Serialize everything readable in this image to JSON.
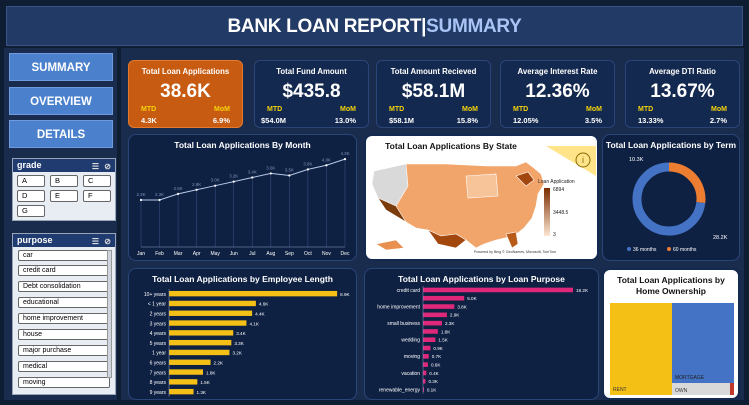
{
  "header": {
    "title_main": "BANK LOAN REPORT|",
    "title_sub": "SUMMARY"
  },
  "nav": {
    "summary": "SUMMARY",
    "overview": "OVERVIEW",
    "details": "DETAILS"
  },
  "grade_slicer": {
    "title": "grade",
    "options": [
      "A",
      "B",
      "C",
      "D",
      "E",
      "F",
      "G"
    ]
  },
  "purpose_slicer": {
    "title": "purpose",
    "options": [
      "car",
      "credit card",
      "Debt consolidation",
      "educational",
      "home improvement",
      "house",
      "major purchase",
      "medical",
      "moving"
    ]
  },
  "kpis": [
    {
      "label": "Total Loan Applications",
      "value": "38.6K",
      "mtd_label": "MTD",
      "mtd": "4.3K",
      "mom_label": "MoM",
      "mom": "6.9%"
    },
    {
      "label": "Total Fund Amount",
      "value": "$435.8",
      "mtd_label": "MTD",
      "mtd": "$54.0M",
      "mom_label": "MoM",
      "mom": "13.0%"
    },
    {
      "label": "Total Amount Recieved",
      "value": "$58.1M",
      "mtd_label": "MTD",
      "mtd": "$58.1M",
      "mom_label": "MoM",
      "mom": "15.8%"
    },
    {
      "label": "Average Interest Rate",
      "value": "12.36%",
      "mtd_label": "MTD",
      "mtd": "12.05%",
      "mom_label": "MoM",
      "mom": "3.5%"
    },
    {
      "label": "Average DTI Ratio",
      "value": "13.67%",
      "mtd_label": "MTD",
      "mtd": "13.33%",
      "mom_label": "MoM",
      "mom": "2.7%"
    }
  ],
  "colors": {
    "accent_orange": "#c85b12",
    "bar_yellow": "#f5c016",
    "bar_pink": "#e0287a",
    "donut_blue": "#4472c4",
    "donut_orange": "#ed7d31",
    "line": "#4472c4"
  },
  "chart_data": [
    {
      "type": "line",
      "title": "Total Loan Applications By Month",
      "categories": [
        "Jan",
        "Feb",
        "Mar",
        "Apr",
        "May",
        "Jun",
        "Jul",
        "Aug",
        "Sep",
        "Oct",
        "Nov",
        "Dec"
      ],
      "values": [
        2.3,
        2.3,
        2.6,
        2.8,
        3.0,
        3.2,
        3.4,
        3.6,
        3.5,
        3.8,
        4.0,
        4.3
      ],
      "labels": [
        "2.3K",
        "2.3K",
        "2.6K",
        "2.8K",
        "3.0K",
        "3.2K",
        "3.4K",
        "3.6K",
        "3.5K",
        "3.8K",
        "4.0K",
        "4.3K"
      ],
      "ylim": [
        0,
        4.6
      ]
    },
    {
      "type": "other",
      "title": "Total Loan Applications By State",
      "legend_title": "Loan Application",
      "legend_values": [
        "6894",
        "3448.5",
        "3"
      ],
      "credit": "Powered by Bing © GeoNames, Microsoft, TomTom"
    },
    {
      "type": "pie",
      "title": "Total Loan Applications by Term",
      "slices": [
        {
          "name": "36 months",
          "value": 28.2,
          "label": "28.2K"
        },
        {
          "name": "60 months",
          "value": 10.3,
          "label": "10.3K"
        }
      ]
    },
    {
      "type": "bar",
      "title": "Total Loan Applications by Employee Length",
      "categories": [
        "10+ years",
        "< 1 year",
        "2 years",
        "3 years",
        "4 years",
        "5 years",
        "1 year",
        "6 years",
        "7 years",
        "8 years",
        "9 years"
      ],
      "values": [
        8.9,
        4.6,
        4.4,
        4.1,
        3.4,
        3.3,
        3.2,
        2.2,
        1.8,
        1.5,
        1.3
      ],
      "labels": [
        "8.9K",
        "4.6K",
        "4.4K",
        "4.1K",
        "3.4K",
        "3.3K",
        "3.2K",
        "2.2K",
        "1.8K",
        "1.5K",
        "1.3K"
      ],
      "xlim": [
        0,
        9
      ]
    },
    {
      "type": "bar",
      "title": "Total Loan Applications by Loan Purpose",
      "categories": [
        "credit card",
        "",
        "home improvement",
        "",
        "small business",
        "",
        "wedding",
        "",
        "moving",
        "",
        "vacation",
        "",
        "renewable_energy"
      ],
      "values": [
        18.2,
        5.0,
        3.8,
        2.9,
        2.3,
        1.8,
        1.5,
        0.9,
        0.7,
        0.6,
        0.4,
        0.3,
        0.1
      ],
      "labels": [
        "18.2K",
        "5.0K",
        "3.8K",
        "2.9K",
        "2.3K",
        "1.8K",
        "1.5K",
        "0.9K",
        "0.7K",
        "0.6K",
        "0.4K",
        "0.3K",
        "0.1K"
      ],
      "xlim": [
        0,
        18.2
      ]
    },
    {
      "type": "heatmap",
      "title": "Total Loan Applications by Home Ownership",
      "categories": [
        "RENT",
        "MORTGAGE",
        "OWN"
      ]
    }
  ]
}
